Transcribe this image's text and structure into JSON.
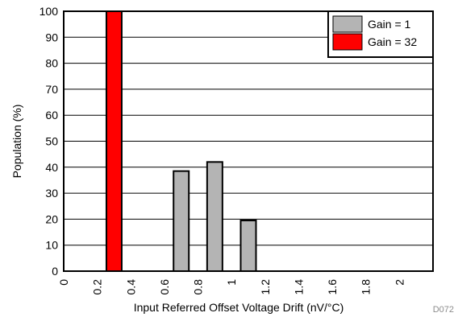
{
  "chart_data": {
    "type": "bar",
    "title": "",
    "xlabel": "Input Referred Offset Voltage Drift (nV/°C)",
    "ylabel": "Population (%)",
    "ylim": [
      0,
      100
    ],
    "y_ticks": [
      0,
      10,
      20,
      30,
      40,
      50,
      60,
      70,
      80,
      90,
      100
    ],
    "x_ticks": [
      "0",
      "0.2",
      "0.4",
      "0.6",
      "0.8",
      "1",
      "1.2",
      "1.4",
      "1.6",
      "1.8",
      "2"
    ],
    "categories": [
      "0.2-0.4",
      "0.4-0.6",
      "0.6-0.8",
      "0.8-1.0",
      "1.0-1.2"
    ],
    "grid": true,
    "legend_position": "top-right",
    "series": [
      {
        "name": "Gain = 1",
        "color": "#b4b4b4",
        "values": [
          0,
          0,
          38.5,
          42,
          19.5
        ]
      },
      {
        "name": "Gain = 32",
        "color": "#ff0000",
        "values": [
          100,
          0,
          0,
          0,
          0
        ]
      }
    ],
    "annotation": "D072"
  }
}
